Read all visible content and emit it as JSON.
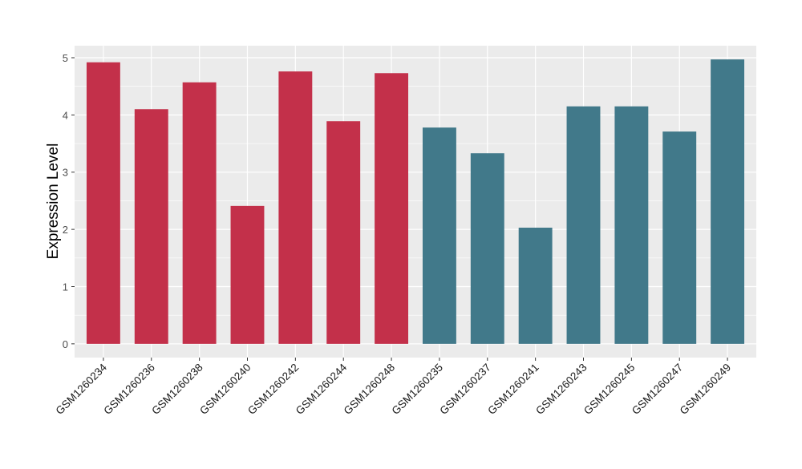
{
  "chart_data": {
    "type": "bar",
    "title": "",
    "xlabel": "",
    "ylabel": "Expression Level",
    "ylim": [
      -0.24,
      5.21
    ],
    "yticks": [
      0,
      1,
      2,
      3,
      4,
      5
    ],
    "grid": true,
    "categories": [
      "GSM1260234",
      "GSM1260236",
      "GSM1260238",
      "GSM1260240",
      "GSM1260242",
      "GSM1260244",
      "GSM1260248",
      "GSM1260235",
      "GSM1260237",
      "GSM1260241",
      "GSM1260243",
      "GSM1260245",
      "GSM1260247",
      "GSM1260249"
    ],
    "values": [
      4.92,
      4.1,
      4.57,
      2.41,
      4.76,
      3.89,
      4.73,
      3.78,
      3.33,
      2.03,
      4.15,
      4.15,
      3.71,
      4.97
    ],
    "groups": [
      "a",
      "a",
      "a",
      "a",
      "a",
      "a",
      "a",
      "b",
      "b",
      "b",
      "b",
      "b",
      "b",
      "b"
    ],
    "group_colors": {
      "a": "#c3304a",
      "b": "#41798a"
    },
    "panel_background": "#ebebeb"
  }
}
